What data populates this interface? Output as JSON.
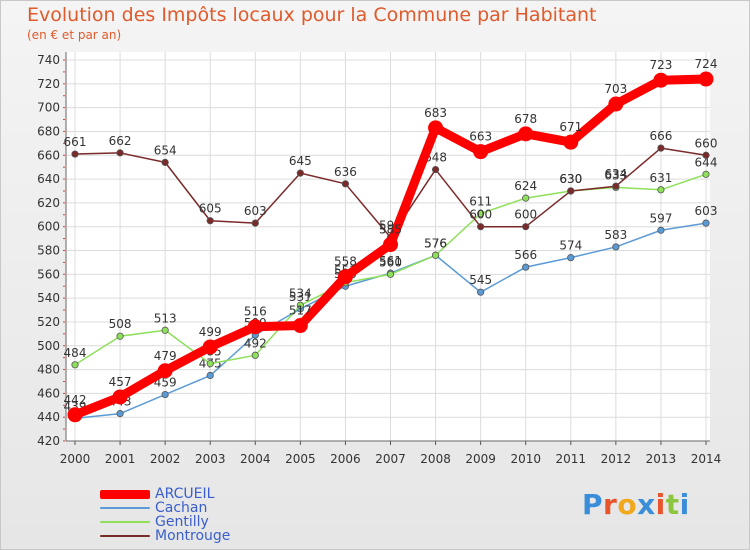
{
  "header": {
    "title": "Evolution des Impôts locaux pour la Commune par Habitant",
    "subtitle": "(en € et par an)"
  },
  "brand": {
    "text": "Proxiti",
    "colors": [
      "#3a8dd8",
      "#e8552a",
      "#f2a81c",
      "#3a8dd8",
      "#e8552a",
      "#8cc63f",
      "#3a8dd8"
    ]
  },
  "chart_data": {
    "type": "line",
    "title": "Evolution des Impôts locaux pour la Commune par Habitant",
    "subtitle": "(en € et par an)",
    "xlabel": "",
    "ylabel": "",
    "ylim": [
      420,
      740
    ],
    "ytick_step": 20,
    "grid": true,
    "legend_position": "bottom-left",
    "categories": [
      "2000",
      "2001",
      "2002",
      "2003",
      "2004",
      "2005",
      "2006",
      "2007",
      "2008",
      "2009",
      "2010",
      "2011",
      "2012",
      "2013",
      "2014"
    ],
    "series": [
      {
        "name": "ARCUEIL",
        "color": "#ff0000",
        "emphasis": true,
        "values": [
          442,
          457,
          479,
          499,
          516,
          517,
          558,
          585,
          683,
          663,
          678,
          671,
          703,
          723,
          724
        ]
      },
      {
        "name": "Cachan",
        "color": "#5b9bd5",
        "emphasis": false,
        "values": [
          439,
          443,
          459,
          475,
          509,
          531,
          550,
          561,
          576,
          545,
          566,
          574,
          583,
          597,
          603
        ]
      },
      {
        "name": "Gentilly",
        "color": "#8ee05b",
        "emphasis": false,
        "values": [
          484,
          508,
          513,
          485,
          492,
          534,
          553,
          560,
          576,
          611,
          624,
          630,
          633,
          631,
          644
        ]
      },
      {
        "name": "Montrouge",
        "color": "#7b2a2a",
        "emphasis": false,
        "values": [
          661,
          662,
          654,
          605,
          603,
          645,
          636,
          591,
          648,
          600,
          600,
          630,
          634,
          666,
          660
        ]
      }
    ]
  }
}
